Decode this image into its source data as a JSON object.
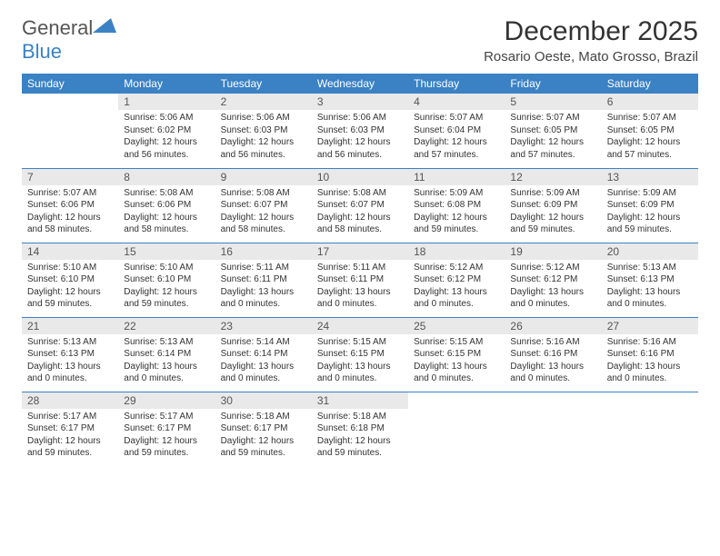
{
  "logo": {
    "general": "General",
    "blue": "Blue"
  },
  "title": "December 2025",
  "location": "Rosario Oeste, Mato Grosso, Brazil",
  "colors": {
    "accent": "#3b82c4",
    "daynum_bg": "#e9e9e9",
    "text": "#333333"
  },
  "weekdays": [
    "Sunday",
    "Monday",
    "Tuesday",
    "Wednesday",
    "Thursday",
    "Friday",
    "Saturday"
  ],
  "weeks": [
    [
      null,
      {
        "n": "1",
        "sr": "Sunrise: 5:06 AM",
        "ss": "Sunset: 6:02 PM",
        "dl": "Daylight: 12 hours and 56 minutes."
      },
      {
        "n": "2",
        "sr": "Sunrise: 5:06 AM",
        "ss": "Sunset: 6:03 PM",
        "dl": "Daylight: 12 hours and 56 minutes."
      },
      {
        "n": "3",
        "sr": "Sunrise: 5:06 AM",
        "ss": "Sunset: 6:03 PM",
        "dl": "Daylight: 12 hours and 56 minutes."
      },
      {
        "n": "4",
        "sr": "Sunrise: 5:07 AM",
        "ss": "Sunset: 6:04 PM",
        "dl": "Daylight: 12 hours and 57 minutes."
      },
      {
        "n": "5",
        "sr": "Sunrise: 5:07 AM",
        "ss": "Sunset: 6:05 PM",
        "dl": "Daylight: 12 hours and 57 minutes."
      },
      {
        "n": "6",
        "sr": "Sunrise: 5:07 AM",
        "ss": "Sunset: 6:05 PM",
        "dl": "Daylight: 12 hours and 57 minutes."
      }
    ],
    [
      {
        "n": "7",
        "sr": "Sunrise: 5:07 AM",
        "ss": "Sunset: 6:06 PM",
        "dl": "Daylight: 12 hours and 58 minutes."
      },
      {
        "n": "8",
        "sr": "Sunrise: 5:08 AM",
        "ss": "Sunset: 6:06 PM",
        "dl": "Daylight: 12 hours and 58 minutes."
      },
      {
        "n": "9",
        "sr": "Sunrise: 5:08 AM",
        "ss": "Sunset: 6:07 PM",
        "dl": "Daylight: 12 hours and 58 minutes."
      },
      {
        "n": "10",
        "sr": "Sunrise: 5:08 AM",
        "ss": "Sunset: 6:07 PM",
        "dl": "Daylight: 12 hours and 58 minutes."
      },
      {
        "n": "11",
        "sr": "Sunrise: 5:09 AM",
        "ss": "Sunset: 6:08 PM",
        "dl": "Daylight: 12 hours and 59 minutes."
      },
      {
        "n": "12",
        "sr": "Sunrise: 5:09 AM",
        "ss": "Sunset: 6:09 PM",
        "dl": "Daylight: 12 hours and 59 minutes."
      },
      {
        "n": "13",
        "sr": "Sunrise: 5:09 AM",
        "ss": "Sunset: 6:09 PM",
        "dl": "Daylight: 12 hours and 59 minutes."
      }
    ],
    [
      {
        "n": "14",
        "sr": "Sunrise: 5:10 AM",
        "ss": "Sunset: 6:10 PM",
        "dl": "Daylight: 12 hours and 59 minutes."
      },
      {
        "n": "15",
        "sr": "Sunrise: 5:10 AM",
        "ss": "Sunset: 6:10 PM",
        "dl": "Daylight: 12 hours and 59 minutes."
      },
      {
        "n": "16",
        "sr": "Sunrise: 5:11 AM",
        "ss": "Sunset: 6:11 PM",
        "dl": "Daylight: 13 hours and 0 minutes."
      },
      {
        "n": "17",
        "sr": "Sunrise: 5:11 AM",
        "ss": "Sunset: 6:11 PM",
        "dl": "Daylight: 13 hours and 0 minutes."
      },
      {
        "n": "18",
        "sr": "Sunrise: 5:12 AM",
        "ss": "Sunset: 6:12 PM",
        "dl": "Daylight: 13 hours and 0 minutes."
      },
      {
        "n": "19",
        "sr": "Sunrise: 5:12 AM",
        "ss": "Sunset: 6:12 PM",
        "dl": "Daylight: 13 hours and 0 minutes."
      },
      {
        "n": "20",
        "sr": "Sunrise: 5:13 AM",
        "ss": "Sunset: 6:13 PM",
        "dl": "Daylight: 13 hours and 0 minutes."
      }
    ],
    [
      {
        "n": "21",
        "sr": "Sunrise: 5:13 AM",
        "ss": "Sunset: 6:13 PM",
        "dl": "Daylight: 13 hours and 0 minutes."
      },
      {
        "n": "22",
        "sr": "Sunrise: 5:13 AM",
        "ss": "Sunset: 6:14 PM",
        "dl": "Daylight: 13 hours and 0 minutes."
      },
      {
        "n": "23",
        "sr": "Sunrise: 5:14 AM",
        "ss": "Sunset: 6:14 PM",
        "dl": "Daylight: 13 hours and 0 minutes."
      },
      {
        "n": "24",
        "sr": "Sunrise: 5:15 AM",
        "ss": "Sunset: 6:15 PM",
        "dl": "Daylight: 13 hours and 0 minutes."
      },
      {
        "n": "25",
        "sr": "Sunrise: 5:15 AM",
        "ss": "Sunset: 6:15 PM",
        "dl": "Daylight: 13 hours and 0 minutes."
      },
      {
        "n": "26",
        "sr": "Sunrise: 5:16 AM",
        "ss": "Sunset: 6:16 PM",
        "dl": "Daylight: 13 hours and 0 minutes."
      },
      {
        "n": "27",
        "sr": "Sunrise: 5:16 AM",
        "ss": "Sunset: 6:16 PM",
        "dl": "Daylight: 13 hours and 0 minutes."
      }
    ],
    [
      {
        "n": "28",
        "sr": "Sunrise: 5:17 AM",
        "ss": "Sunset: 6:17 PM",
        "dl": "Daylight: 12 hours and 59 minutes."
      },
      {
        "n": "29",
        "sr": "Sunrise: 5:17 AM",
        "ss": "Sunset: 6:17 PM",
        "dl": "Daylight: 12 hours and 59 minutes."
      },
      {
        "n": "30",
        "sr": "Sunrise: 5:18 AM",
        "ss": "Sunset: 6:17 PM",
        "dl": "Daylight: 12 hours and 59 minutes."
      },
      {
        "n": "31",
        "sr": "Sunrise: 5:18 AM",
        "ss": "Sunset: 6:18 PM",
        "dl": "Daylight: 12 hours and 59 minutes."
      },
      null,
      null,
      null
    ]
  ]
}
